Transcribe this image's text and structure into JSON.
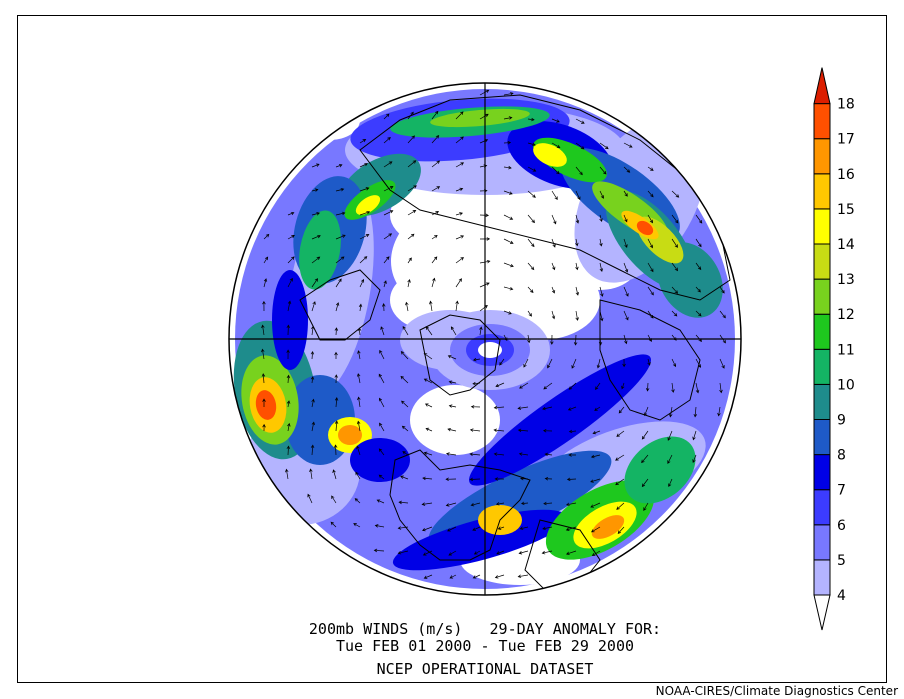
{
  "caption": {
    "line1": "200mb WINDS (m/s)   29-DAY ANOMALY FOR:",
    "line2": "Tue FEB 01 2000 - Tue FEB 29 2000",
    "line3": "NCEP OPERATIONAL DATASET"
  },
  "credit": "NOAA-CIRES/Climate Diagnostics Center",
  "colorbar": {
    "levels": [
      "4",
      "5",
      "6",
      "7",
      "8",
      "9",
      "10",
      "11",
      "12",
      "13",
      "14",
      "15",
      "16",
      "17",
      "18"
    ],
    "colors": [
      "#ffffff",
      "#b4b4ff",
      "#7878ff",
      "#3c3cff",
      "#0000e6",
      "#1e5ac8",
      "#1e8c8c",
      "#14b464",
      "#1ec81e",
      "#78d21e",
      "#c8dc14",
      "#ffff00",
      "#ffc800",
      "#ff9600",
      "#ff5000",
      "#dc1e00"
    ]
  },
  "map": {
    "projection": "north-polar-stereographic",
    "field": "200mb wind anomaly speed with vectors"
  }
}
